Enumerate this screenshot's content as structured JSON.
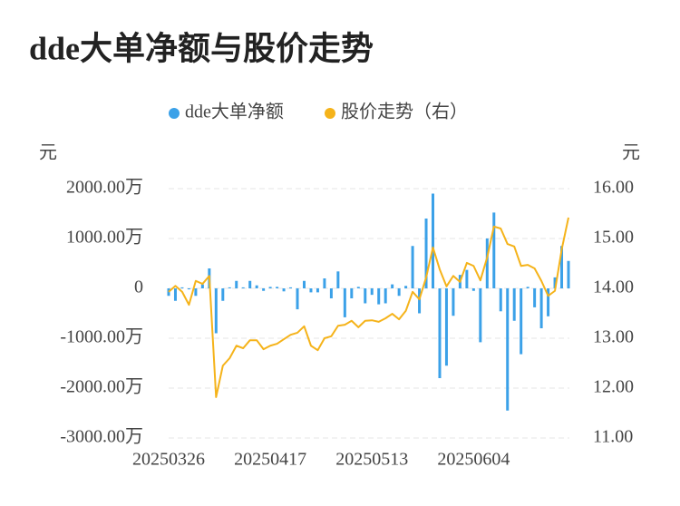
{
  "chart_data": {
    "type": "bar",
    "title": "dde大单净额与股价走势",
    "y_label": "元",
    "y2_label": "元",
    "categories": [
      "20250326",
      null,
      null,
      null,
      null,
      null,
      null,
      null,
      null,
      null,
      null,
      null,
      null,
      null,
      null,
      "20250417",
      null,
      null,
      null,
      null,
      null,
      null,
      null,
      null,
      null,
      null,
      null,
      null,
      null,
      null,
      "20250513",
      null,
      null,
      null,
      null,
      null,
      null,
      null,
      null,
      null,
      null,
      null,
      null,
      null,
      null,
      "20250604",
      null,
      null,
      null,
      null,
      null,
      null,
      null,
      null,
      null,
      null,
      null,
      null,
      null,
      null
    ],
    "series": [
      {
        "name": "dde大单净额",
        "color": "#3ba1e8",
        "type": "bar",
        "values": [
          -150,
          -250,
          20,
          -20,
          -150,
          80,
          400,
          -900,
          -250,
          20,
          150,
          20,
          150,
          60,
          -50,
          30,
          30,
          -60,
          20,
          -420,
          150,
          -80,
          -80,
          200,
          -200,
          340,
          -580,
          -200,
          30,
          -300,
          -130,
          -320,
          -300,
          80,
          -150,
          50,
          850,
          -500,
          1400,
          1900,
          -1800,
          -1550,
          -550,
          270,
          370,
          -50,
          -1080,
          1000,
          1520,
          -460,
          -2450,
          -650,
          -1320,
          30,
          -380,
          -800,
          -560,
          220,
          850,
          550
        ]
      },
      {
        "name": "股价走势（右）",
        "color": "#f5b31a",
        "type": "line",
        "axis": "y2",
        "values": [
          13.93,
          14.05,
          13.93,
          13.67,
          14.15,
          14.09,
          14.25,
          11.82,
          12.45,
          12.6,
          12.85,
          12.8,
          12.96,
          12.96,
          12.78,
          12.85,
          12.89,
          12.98,
          13.07,
          13.11,
          13.24,
          12.85,
          12.76,
          13.0,
          13.04,
          13.25,
          13.27,
          13.35,
          13.22,
          13.35,
          13.36,
          13.33,
          13.4,
          13.49,
          13.38,
          13.55,
          13.93,
          13.78,
          14.22,
          14.82,
          14.38,
          14.04,
          14.25,
          14.13,
          14.51,
          14.45,
          14.16,
          14.62,
          15.24,
          15.2,
          14.89,
          14.84,
          14.45,
          14.47,
          14.4,
          14.15,
          13.85,
          13.95,
          14.78,
          15.42
        ]
      }
    ],
    "ylim": [
      -3000,
      2000
    ],
    "yticks": [
      {
        "value": -3000,
        "label": "-3000.00万"
      },
      {
        "value": -2000,
        "label": "-2000.00万"
      },
      {
        "value": -1000,
        "label": "-1000.00万"
      },
      0,
      {
        "value": 1000,
        "label": "1000.00万"
      },
      {
        "value": 2000,
        "label": "2000.00万"
      }
    ],
    "y2lim": [
      11,
      16
    ],
    "y2ticks": [
      {
        "value": 11,
        "label": "11.00"
      },
      {
        "value": 12,
        "label": "12.00"
      },
      {
        "value": 13,
        "label": "13.00"
      },
      {
        "value": 14,
        "label": "14.00"
      },
      {
        "value": 15,
        "label": "15.00"
      },
      {
        "value": 16,
        "label": "16.00"
      }
    ],
    "grid": true
  }
}
